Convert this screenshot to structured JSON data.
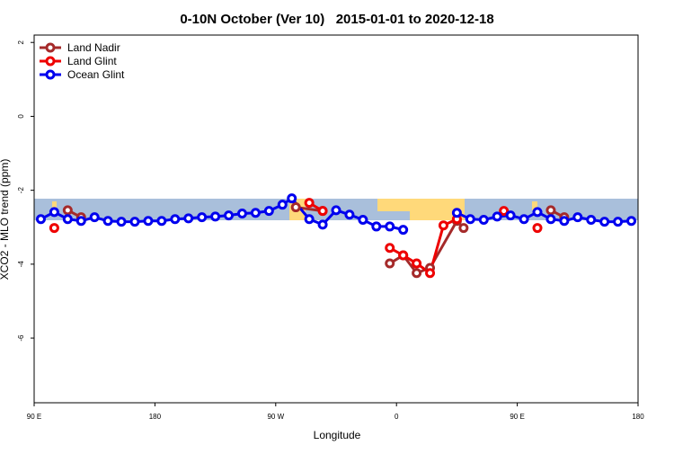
{
  "chart_data": {
    "type": "line",
    "title": "0-10N October (Ver 10)   2015-01-01 to 2020-12-18",
    "x_label": "Longitude",
    "y_label": "XCO2 - MLO trend (ppm)",
    "xlim": [
      90,
      540
    ],
    "ylim": [
      -7.75,
      2.2
    ],
    "xticks": [
      {
        "value": 90,
        "label": "90 E"
      },
      180,
      {
        "value": 270,
        "label": "90 W"
      },
      {
        "value": 360,
        "label": "0"
      },
      {
        "value": 450,
        "label": "90 E"
      },
      {
        "value": 540,
        "label": "180"
      }
    ],
    "yticks": [
      2,
      0,
      -2,
      -4,
      -6
    ],
    "legend": "top-left",
    "series": [
      {
        "name": "Land Nadir",
        "color": "#a52a2a",
        "x": [
          115,
          125,
          200,
          285,
          305,
          330,
          355,
          365,
          375,
          385,
          405,
          410,
          430,
          475,
          485
        ],
        "values": [
          -2.54,
          -2.73,
          null,
          -2.46,
          -2.56,
          null,
          -3.98,
          -3.76,
          -4.24,
          -4.1,
          -2.83,
          -3.02,
          null,
          -2.54,
          -2.73
        ]
      },
      {
        "name": "Land Glint",
        "color": "#ee0000",
        "x": [
          105,
          200,
          295,
          305,
          330,
          355,
          365,
          375,
          385,
          395,
          405,
          420,
          440,
          450,
          465
        ],
        "values": [
          -3.02,
          null,
          -2.34,
          -2.56,
          null,
          -3.56,
          -3.76,
          -3.98,
          -4.24,
          -2.95,
          -2.78,
          null,
          -2.56,
          null,
          -3.02
        ]
      },
      {
        "name": "Ocean Glint",
        "color": "#0000ee",
        "x": [
          95,
          105,
          115,
          125,
          135,
          145,
          155,
          165,
          175,
          185,
          195,
          205,
          215,
          225,
          235,
          245,
          255,
          265,
          275,
          282,
          295,
          305,
          315,
          325,
          335,
          345,
          355,
          365,
          385,
          405,
          415,
          425,
          435,
          445,
          455,
          465,
          475,
          485,
          495,
          505,
          515,
          525,
          535
        ],
        "values": [
          -2.78,
          -2.59,
          -2.78,
          -2.83,
          -2.73,
          -2.83,
          -2.85,
          -2.85,
          -2.83,
          -2.83,
          -2.78,
          -2.76,
          -2.73,
          -2.71,
          -2.68,
          -2.63,
          -2.61,
          -2.56,
          -2.39,
          -2.22,
          -2.78,
          -2.93,
          -2.54,
          -2.66,
          -2.8,
          -2.98,
          -2.98,
          -3.07,
          null,
          -2.61,
          -2.78,
          -2.8,
          -2.71,
          -2.68,
          -2.78,
          -2.59,
          -2.78,
          -2.83,
          -2.73,
          -2.8,
          -2.85,
          -2.85,
          -2.83
        ]
      }
    ]
  }
}
